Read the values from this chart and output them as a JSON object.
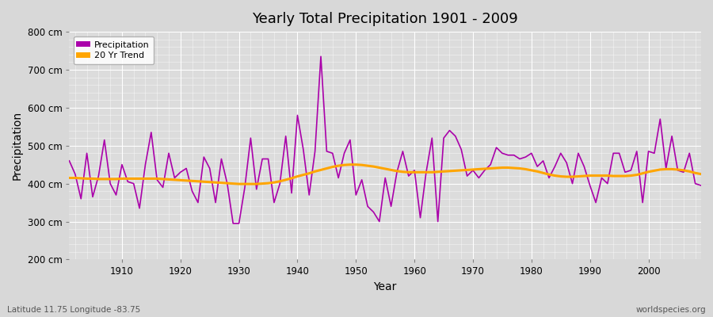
{
  "title": "Yearly Total Precipitation 1901 - 2009",
  "xlabel": "Year",
  "ylabel": "Precipitation",
  "fig_bg_color": "#d8d8d8",
  "plot_bg_color": "#dcdcdc",
  "precip_color": "#aa00aa",
  "trend_color": "#FFA500",
  "ylim": [
    200,
    800
  ],
  "xlim": [
    1901,
    2009
  ],
  "yticks": [
    200,
    300,
    400,
    500,
    600,
    700,
    800
  ],
  "ytick_labels": [
    "200 cm",
    "300 cm",
    "400 cm",
    "500 cm",
    "600 cm",
    "700 cm",
    "800 cm"
  ],
  "xticks": [
    1910,
    1920,
    1930,
    1940,
    1950,
    1960,
    1970,
    1980,
    1990,
    2000
  ],
  "subtitle_left": "Latitude 11.75 Longitude -83.75",
  "subtitle_right": "worldspecies.org",
  "legend_labels": [
    "Precipitation",
    "20 Yr Trend"
  ],
  "years": [
    1901,
    1902,
    1903,
    1904,
    1905,
    1906,
    1907,
    1908,
    1909,
    1910,
    1911,
    1912,
    1913,
    1914,
    1915,
    1916,
    1917,
    1918,
    1919,
    1920,
    1921,
    1922,
    1923,
    1924,
    1925,
    1926,
    1927,
    1928,
    1929,
    1930,
    1931,
    1932,
    1933,
    1934,
    1935,
    1936,
    1937,
    1938,
    1939,
    1940,
    1941,
    1942,
    1943,
    1944,
    1945,
    1946,
    1947,
    1948,
    1949,
    1950,
    1951,
    1952,
    1953,
    1954,
    1955,
    1956,
    1957,
    1958,
    1959,
    1960,
    1961,
    1962,
    1963,
    1964,
    1965,
    1966,
    1967,
    1968,
    1969,
    1970,
    1971,
    1972,
    1973,
    1974,
    1975,
    1976,
    1977,
    1978,
    1979,
    1980,
    1981,
    1982,
    1983,
    1984,
    1985,
    1986,
    1987,
    1988,
    1989,
    1990,
    1991,
    1992,
    1993,
    1994,
    1995,
    1996,
    1997,
    1998,
    1999,
    2000,
    2001,
    2002,
    2003,
    2004,
    2005,
    2006,
    2007,
    2008,
    2009
  ],
  "precip": [
    460,
    425,
    360,
    480,
    365,
    420,
    515,
    400,
    370,
    450,
    405,
    400,
    335,
    450,
    535,
    410,
    390,
    480,
    415,
    430,
    440,
    380,
    350,
    470,
    440,
    350,
    465,
    400,
    295,
    295,
    390,
    520,
    385,
    465,
    465,
    350,
    400,
    525,
    375,
    580,
    490,
    370,
    485,
    735,
    485,
    480,
    415,
    480,
    515,
    370,
    410,
    340,
    325,
    300,
    415,
    340,
    430,
    485,
    420,
    435,
    310,
    430,
    520,
    300,
    520,
    540,
    525,
    490,
    420,
    435,
    415,
    435,
    450,
    495,
    480,
    475,
    475,
    465,
    470,
    480,
    445,
    460,
    415,
    445,
    480,
    455,
    400,
    480,
    445,
    395,
    350,
    415,
    400,
    480,
    480,
    430,
    435,
    485,
    350,
    485,
    480,
    570,
    440,
    525,
    435,
    430,
    480,
    400,
    395
  ],
  "trend": [
    415,
    415,
    414,
    413,
    413,
    412,
    412,
    412,
    412,
    413,
    413,
    413,
    413,
    413,
    413,
    413,
    412,
    411,
    410,
    409,
    408,
    407,
    406,
    405,
    404,
    403,
    402,
    401,
    400,
    399,
    399,
    399,
    399,
    400,
    401,
    403,
    406,
    410,
    414,
    419,
    423,
    427,
    432,
    436,
    440,
    444,
    447,
    449,
    450,
    450,
    449,
    447,
    445,
    442,
    439,
    436,
    433,
    431,
    430,
    430,
    430,
    430,
    430,
    431,
    432,
    433,
    434,
    435,
    436,
    437,
    438,
    439,
    440,
    441,
    442,
    442,
    441,
    440,
    438,
    435,
    432,
    428,
    424,
    421,
    419,
    418,
    418,
    419,
    420,
    421,
    421,
    421,
    421,
    420,
    420,
    420,
    421,
    423,
    427,
    431,
    434,
    437,
    438,
    438,
    437,
    435,
    432,
    428,
    425
  ]
}
